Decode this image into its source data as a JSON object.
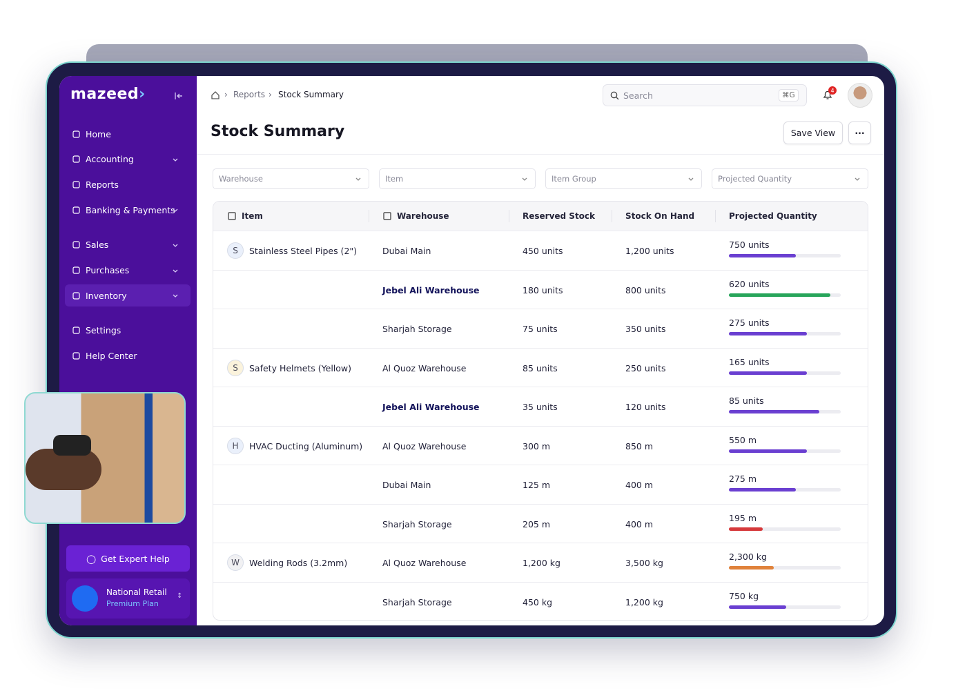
{
  "sidebar": {
    "logo": "mazeed",
    "nav": [
      [
        {
          "label": "Home"
        },
        {
          "label": "Accounting",
          "submenu": true
        },
        {
          "label": "Reports"
        },
        {
          "label": "Banking & Payments",
          "submenu": true
        }
      ],
      [
        {
          "label": "Sales",
          "submenu": true
        },
        {
          "label": "Purchases",
          "submenu": true
        },
        {
          "label": "Inventory",
          "submenu": true,
          "active": true
        }
      ],
      [
        {
          "label": "Settings"
        },
        {
          "label": "Help Center"
        }
      ]
    ],
    "help_button": "Get Expert Help",
    "account": {
      "name": "National Retail",
      "plan": "Premium Plan"
    }
  },
  "header": {
    "breadcrumb": [
      "Reports",
      "Stock Summary"
    ],
    "search_placeholder": "Search",
    "shortcut": "⌘G",
    "notifications": 4,
    "title": "Stock Summary",
    "save_view": "Save View"
  },
  "filters": [
    "Warehouse",
    "Item",
    "Item Group",
    "Projected Quantity"
  ],
  "table": {
    "columns": [
      "Item",
      "Warehouse",
      "Reserved Stock",
      "Stock On Hand",
      "Projected Quantity"
    ],
    "rows": [
      {
        "initial": "S",
        "initial_bg": "#eaf0fb",
        "item": "Stainless Steel Pipes (2\")",
        "warehouse": "Dubai Main",
        "reserved": "450 units",
        "on_hand": "1,200 units",
        "projected": "750 units",
        "progress": 60,
        "color": "#6a3fd1"
      },
      {
        "warehouse": "Jebel Ali Warehouse",
        "emphasis": true,
        "reserved": "180 units",
        "on_hand": "800 units",
        "projected": "620 units",
        "progress": 91,
        "color": "#27a55a"
      },
      {
        "warehouse": "Sharjah Storage",
        "reserved": "75 units",
        "on_hand": "350 units",
        "projected": "275 units",
        "progress": 70,
        "color": "#6a3fd1"
      },
      {
        "initial": "S",
        "initial_bg": "#fbf3dc",
        "item": "Safety Helmets (Yellow)",
        "warehouse": "Al Quoz Warehouse",
        "reserved": "85 units",
        "on_hand": "250 units",
        "projected": "165 units",
        "progress": 70,
        "color": "#6a3fd1"
      },
      {
        "warehouse": "Jebel Ali Warehouse",
        "emphasis": true,
        "reserved": "35 units",
        "on_hand": "120 units",
        "projected": "85 units",
        "progress": 81,
        "color": "#6a3fd1"
      },
      {
        "initial": "H",
        "initial_bg": "#eaf0fb",
        "item": "HVAC Ducting (Aluminum)",
        "warehouse": "Al Quoz Warehouse",
        "reserved": "300 m",
        "on_hand": "850 m",
        "projected": "550 m",
        "progress": 70,
        "color": "#6a3fd1"
      },
      {
        "warehouse": "Dubai Main",
        "reserved": "125 m",
        "on_hand": "400 m",
        "projected": "275 m",
        "progress": 60,
        "color": "#6a3fd1"
      },
      {
        "warehouse": "Sharjah Storage",
        "reserved": "205 m",
        "on_hand": "400 m",
        "projected": "195 m",
        "progress": 30,
        "color": "#d6393b"
      },
      {
        "initial": "W",
        "initial_bg": "#f1f1f3",
        "item": "Welding Rods (3.2mm)",
        "warehouse": "Al Quoz Warehouse",
        "reserved": "1,200 kg",
        "on_hand": "3,500 kg",
        "projected": "2,300 kg",
        "progress": 40,
        "color": "#e0823a"
      },
      {
        "warehouse": "Sharjah Storage",
        "reserved": "450 kg",
        "on_hand": "1,200 kg",
        "projected": "750 kg",
        "progress": 51,
        "color": "#6a3fd1"
      }
    ]
  }
}
